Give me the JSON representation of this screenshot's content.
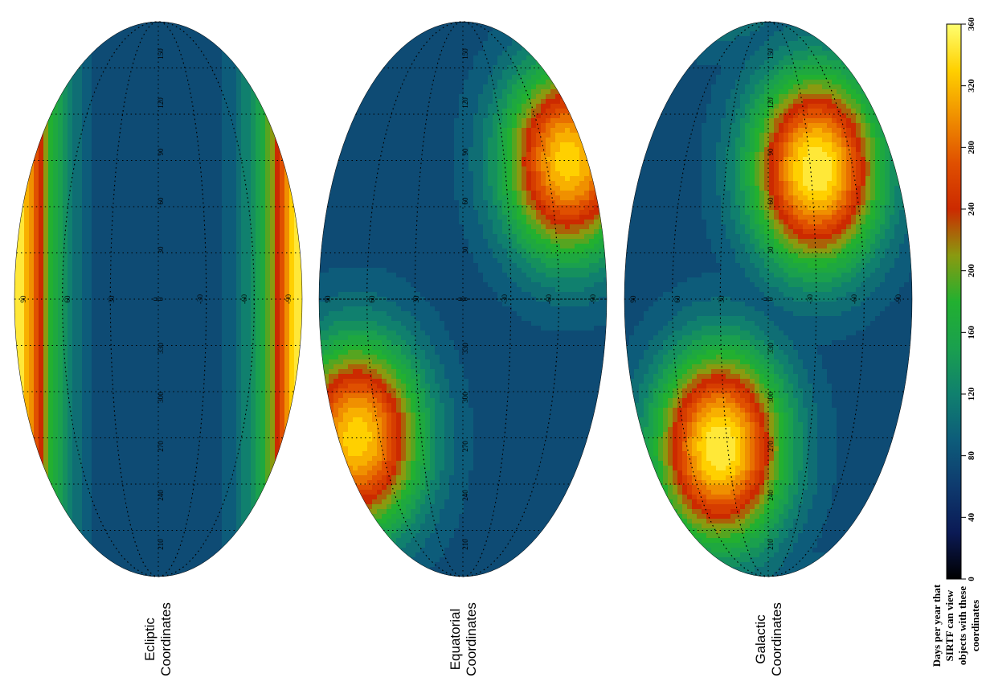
{
  "chart_data": [
    {
      "type": "heatmap",
      "projection": "aitoff",
      "orientation": "rotated 90 degrees counter-clockwise",
      "title": "Ecliptic\nCoordinates",
      "description_of_pattern": "high visibility bands along ecliptic longitude edges (poles)",
      "hotspots": [
        {
          "lon": -180,
          "lat": 0,
          "value": 360
        },
        {
          "lon": 180,
          "lat": 0,
          "value": 360
        }
      ],
      "background_value": 80,
      "grid_ticks": [
        "90",
        "60",
        "30",
        "0",
        "-30",
        "-60",
        "-90",
        "150",
        "120",
        "90",
        "60",
        "30",
        "0",
        "330",
        "300",
        "270",
        "240",
        "210"
      ]
    },
    {
      "type": "heatmap",
      "projection": "aitoff",
      "orientation": "rotated 90 degrees counter-clockwise",
      "title": "Equatorial\nCoordinates",
      "hotspots": [
        {
          "lon": 90,
          "lat": 66,
          "value": 340
        },
        {
          "lon": 270,
          "lat": -66,
          "value": 340
        }
      ],
      "background_value": 80,
      "grid_ticks": [
        "90",
        "60",
        "30",
        "0",
        "-30",
        "-60",
        "-90",
        "150",
        "120",
        "90",
        "60",
        "30",
        "0",
        "330",
        "300",
        "270",
        "240",
        "210"
      ]
    },
    {
      "type": "heatmap",
      "projection": "aitoff",
      "orientation": "rotated 90 degrees counter-clockwise",
      "title": "Galactic\nCoordinates",
      "hotspots": [
        {
          "lon": 96,
          "lat": 30,
          "value": 360
        },
        {
          "lon": 276,
          "lat": -30,
          "value": 360
        }
      ],
      "background_value": 80,
      "grid_ticks": [
        "90",
        "60",
        "30",
        "0",
        "-30",
        "-60",
        "-90",
        "150",
        "120",
        "90",
        "60",
        "30",
        "0",
        "330",
        "300",
        "270",
        "240",
        "210"
      ]
    }
  ],
  "colorbar": {
    "label": "Days per year that\nSIRTF can view\nobjects with these\ncoordinates",
    "ticks": [
      "0",
      "40",
      "80",
      "120",
      "160",
      "200",
      "240",
      "280",
      "320",
      "360"
    ],
    "range": [
      0,
      360
    ],
    "colormap": [
      "#000000",
      "#0b1a55",
      "#0e3a6e",
      "#0d5c7a",
      "#10806e",
      "#1aa04e",
      "#22b030",
      "#8a9a10",
      "#cc2a00",
      "#e05000",
      "#f09000",
      "#ffd000",
      "#ffff70"
    ]
  },
  "labels": {
    "ecliptic": "Ecliptic\nCoordinates",
    "equatorial": "Equatorial\nCoordinates",
    "galactic": "Galactic\nCoordinates"
  }
}
